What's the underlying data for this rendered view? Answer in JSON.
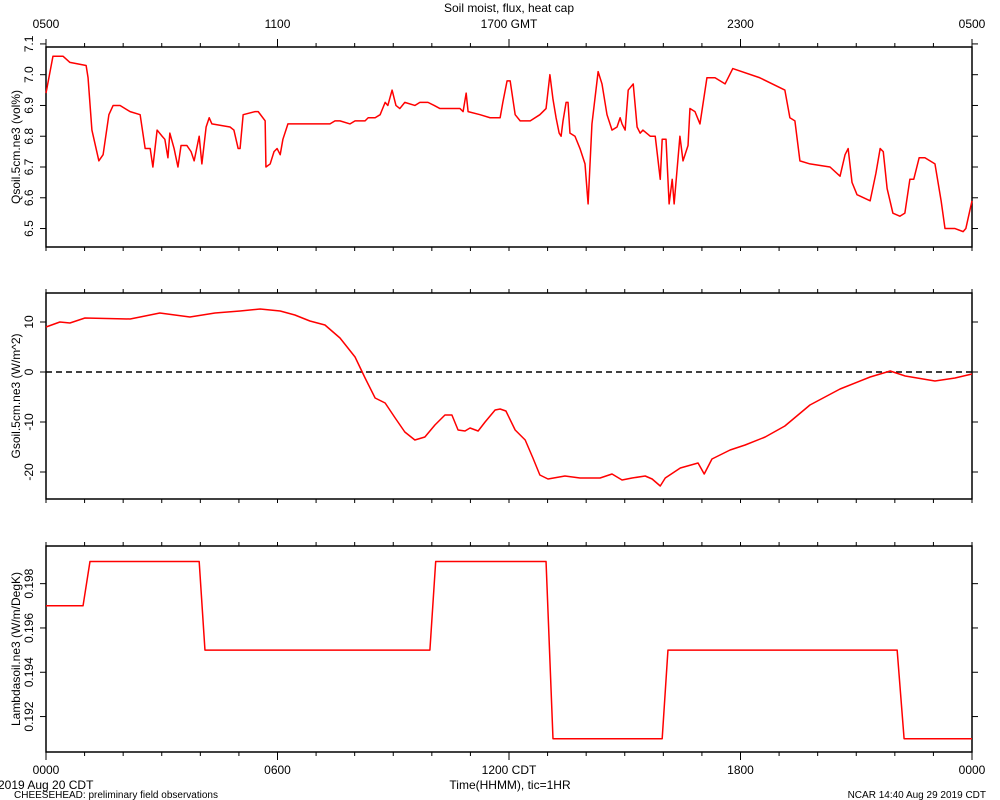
{
  "chart_data": [
    {
      "type": "line",
      "title": "Soil moist, flux, heat cap",
      "ylabel": "Qsoil.5cm.ne3 (vol%)",
      "color": "#ff0000",
      "xlim": [
        0,
        24
      ],
      "ylim": [
        6.44,
        7.09
      ],
      "yticks": [
        6.5,
        6.6,
        6.7,
        6.8,
        6.9,
        {
          "value": 7,
          "label": "7.0"
        },
        7.1
      ],
      "x2ticks": [
        {
          "value": 0,
          "label": "0500"
        },
        {
          "value": 6,
          "label": "1100"
        },
        {
          "value": 12,
          "label": "1700 GMT"
        },
        {
          "value": 18,
          "label": "2300"
        },
        {
          "value": 24,
          "label": "0500"
        }
      ],
      "xminor": [
        0,
        1,
        2,
        3,
        4,
        5,
        6,
        7,
        8,
        9,
        10,
        11,
        12,
        13,
        14,
        15,
        16,
        17,
        18,
        19,
        20,
        21,
        22,
        23,
        24
      ],
      "x": [
        0,
        0.18,
        0.44,
        0.62,
        1.04,
        1.09,
        1.19,
        1.37,
        1.48,
        1.63,
        1.74,
        1.92,
        2.18,
        2.44,
        2.57,
        2.7,
        2.77,
        2.88,
        3.01,
        3.08,
        3.16,
        3.21,
        3.32,
        3.42,
        3.5,
        3.65,
        3.76,
        3.84,
        3.97,
        4.04,
        4.15,
        4.23,
        4.3,
        4.77,
        4.87,
        4.98,
        5.03,
        5.11,
        5.42,
        5.5,
        5.68,
        5.7,
        5.81,
        5.91,
        5.99,
        6.07,
        6.14,
        6.27,
        6.58,
        7.36,
        7.49,
        7.62,
        7.88,
        8.01,
        8.14,
        8.27,
        8.35,
        8.53,
        8.66,
        8.79,
        8.86,
        8.97,
        9.07,
        9.17,
        9.3,
        9.56,
        9.69,
        9.9,
        10.06,
        10.21,
        10.47,
        10.73,
        10.81,
        10.89,
        10.94,
        11.25,
        11.51,
        11.77,
        11.84,
        11.95,
        12.03,
        12.16,
        12.29,
        12.55,
        12.8,
        12.96,
        13.06,
        13.14,
        13.22,
        13.3,
        13.35,
        13.4,
        13.48,
        13.53,
        13.58,
        13.71,
        13.84,
        13.97,
        14.05,
        14.15,
        14.31,
        14.41,
        14.54,
        14.67,
        14.8,
        14.88,
        14.93,
        15.01,
        15.09,
        15.22,
        15.32,
        15.4,
        15.47,
        15.66,
        15.79,
        15.92,
        15.97,
        16.07,
        16.15,
        16.23,
        16.28,
        16.43,
        16.51,
        16.64,
        16.69,
        16.82,
        16.95,
        17.13,
        17.34,
        17.6,
        17.8,
        18.5,
        19.15,
        19.28,
        19.41,
        19.54,
        19.8,
        20.32,
        20.58,
        20.71,
        20.79,
        20.89,
        21.02,
        21.36,
        21.51,
        21.62,
        21.7,
        21.8,
        21.95,
        22.13,
        22.26,
        22.39,
        22.49,
        22.63,
        22.78,
        23.04,
        23.2,
        23.3,
        23.56,
        23.77,
        23.84,
        24
      ],
      "values": [
        6.94,
        7.06,
        7.06,
        7.04,
        7.03,
        6.99,
        6.82,
        6.72,
        6.74,
        6.87,
        6.9,
        6.9,
        6.88,
        6.87,
        6.76,
        6.76,
        6.7,
        6.82,
        6.8,
        6.79,
        6.73,
        6.81,
        6.76,
        6.7,
        6.77,
        6.77,
        6.75,
        6.72,
        6.8,
        6.71,
        6.83,
        6.86,
        6.84,
        6.83,
        6.82,
        6.76,
        6.76,
        6.87,
        6.88,
        6.88,
        6.85,
        6.7,
        6.71,
        6.75,
        6.76,
        6.74,
        6.79,
        6.84,
        6.84,
        6.84,
        6.85,
        6.85,
        6.84,
        6.85,
        6.85,
        6.85,
        6.86,
        6.86,
        6.87,
        6.91,
        6.9,
        6.95,
        6.9,
        6.89,
        6.91,
        6.9,
        6.91,
        6.91,
        6.9,
        6.89,
        6.89,
        6.89,
        6.88,
        6.94,
        6.88,
        6.87,
        6.86,
        6.86,
        6.91,
        6.98,
        6.98,
        6.87,
        6.85,
        6.85,
        6.87,
        6.89,
        7.0,
        6.92,
        6.86,
        6.81,
        6.8,
        6.85,
        6.91,
        6.91,
        6.81,
        6.8,
        6.76,
        6.71,
        6.58,
        6.84,
        7.01,
        6.97,
        6.87,
        6.82,
        6.83,
        6.86,
        6.84,
        6.82,
        6.95,
        6.97,
        6.83,
        6.81,
        6.82,
        6.8,
        6.8,
        6.66,
        6.79,
        6.79,
        6.58,
        6.66,
        6.58,
        6.8,
        6.72,
        6.77,
        6.89,
        6.88,
        6.84,
        6.99,
        6.99,
        6.97,
        7.02,
        6.99,
        6.95,
        6.86,
        6.85,
        6.72,
        6.71,
        6.7,
        6.67,
        6.74,
        6.76,
        6.65,
        6.61,
        6.59,
        6.68,
        6.76,
        6.75,
        6.63,
        6.55,
        6.54,
        6.55,
        6.66,
        6.66,
        6.73,
        6.73,
        6.71,
        6.59,
        6.5,
        6.5,
        6.49,
        6.5,
        6.59
      ]
    },
    {
      "type": "line",
      "ylabel": "Gsoil.5cm.ne3 (W/m^2)",
      "color": "#ff0000",
      "zero_line": true,
      "xlim": [
        0,
        24
      ],
      "ylim": [
        -25.4,
        15.8
      ],
      "yticks": [
        -20,
        -10,
        0,
        10
      ],
      "xminor": [
        0,
        1,
        2,
        3,
        4,
        5,
        6,
        7,
        8,
        9,
        10,
        11,
        12,
        13,
        14,
        15,
        16,
        17,
        18,
        19,
        20,
        21,
        22,
        23,
        24
      ],
      "x": [
        0,
        0.36,
        0.62,
        1.01,
        2.18,
        2.44,
        2.95,
        3.73,
        4.38,
        5.03,
        5.55,
        6.07,
        6.45,
        6.84,
        7.23,
        7.62,
        8.01,
        8.27,
        8.53,
        8.79,
        9.05,
        9.3,
        9.56,
        9.82,
        10.08,
        10.34,
        10.52,
        10.68,
        10.86,
        10.99,
        11.2,
        11.38,
        11.64,
        11.77,
        11.92,
        12.16,
        12.42,
        12.62,
        12.8,
        13.01,
        13.45,
        13.84,
        14.36,
        14.67,
        14.93,
        15.19,
        15.53,
        15.71,
        15.92,
        16.05,
        16.44,
        16.9,
        17.06,
        17.26,
        17.73,
        18.12,
        18.64,
        19.15,
        19.8,
        20.58,
        21.36,
        21.88,
        22.27,
        23.04,
        23.56,
        24
      ],
      "values": [
        9,
        10,
        9.8,
        10.8,
        10.6,
        11,
        11.8,
        11,
        11.8,
        12.2,
        12.6,
        12.2,
        11.4,
        10.2,
        9.4,
        6.8,
        3,
        -1.2,
        -5.2,
        -6.2,
        -9.2,
        -12,
        -13.6,
        -13,
        -10.6,
        -8.6,
        -8.6,
        -11.6,
        -11.8,
        -11.2,
        -11.8,
        -10,
        -7.6,
        -7.4,
        -7.8,
        -11.6,
        -13.6,
        -17.2,
        -20.6,
        -21.4,
        -20.8,
        -21.2,
        -21.2,
        -20.4,
        -21.6,
        -21.2,
        -20.8,
        -21.4,
        -22.8,
        -21.2,
        -19.2,
        -18.2,
        -20.4,
        -17.4,
        -15.6,
        -14.6,
        -13,
        -10.8,
        -6.6,
        -3.4,
        -1,
        0.2,
        -0.8,
        -1.8,
        -1.2,
        -0.4
      ]
    },
    {
      "type": "line",
      "ylabel": "Lambdasoil.ne3 (W/m/DegK)",
      "color": "#ff0000",
      "xlim": [
        0,
        24
      ],
      "ylim": [
        0.1904,
        0.1997
      ],
      "yticks": [
        0.192,
        0.194,
        0.196,
        0.198
      ],
      "xticks": [
        {
          "value": 0,
          "label": "0000"
        },
        {
          "value": 6,
          "label": "0600"
        },
        {
          "value": 12,
          "label": "1200 CDT"
        },
        {
          "value": 18,
          "label": "1800"
        },
        {
          "value": 24,
          "label": "0000"
        }
      ],
      "xminor": [
        0,
        1,
        2,
        3,
        4,
        5,
        6,
        7,
        8,
        9,
        10,
        11,
        12,
        13,
        14,
        15,
        16,
        17,
        18,
        19,
        20,
        21,
        22,
        23,
        24
      ],
      "xlabel": "Time(HHMM), tic=1HR",
      "date_label": "2019 Aug 20 CDT",
      "note": "CHEESEHEAD: preliminary field observations",
      "credit": "NCAR 14:40 Aug 29 2019 CDT",
      "x": [
        0,
        0.96,
        1.14,
        3.97,
        4.12,
        9.95,
        10.1,
        12.96,
        13.14,
        15.97,
        16.12,
        22.06,
        22.24,
        24
      ],
      "values": [
        0.197,
        0.197,
        0.199,
        0.199,
        0.195,
        0.195,
        0.199,
        0.199,
        0.191,
        0.191,
        0.195,
        0.195,
        0.191,
        0.191
      ]
    }
  ]
}
